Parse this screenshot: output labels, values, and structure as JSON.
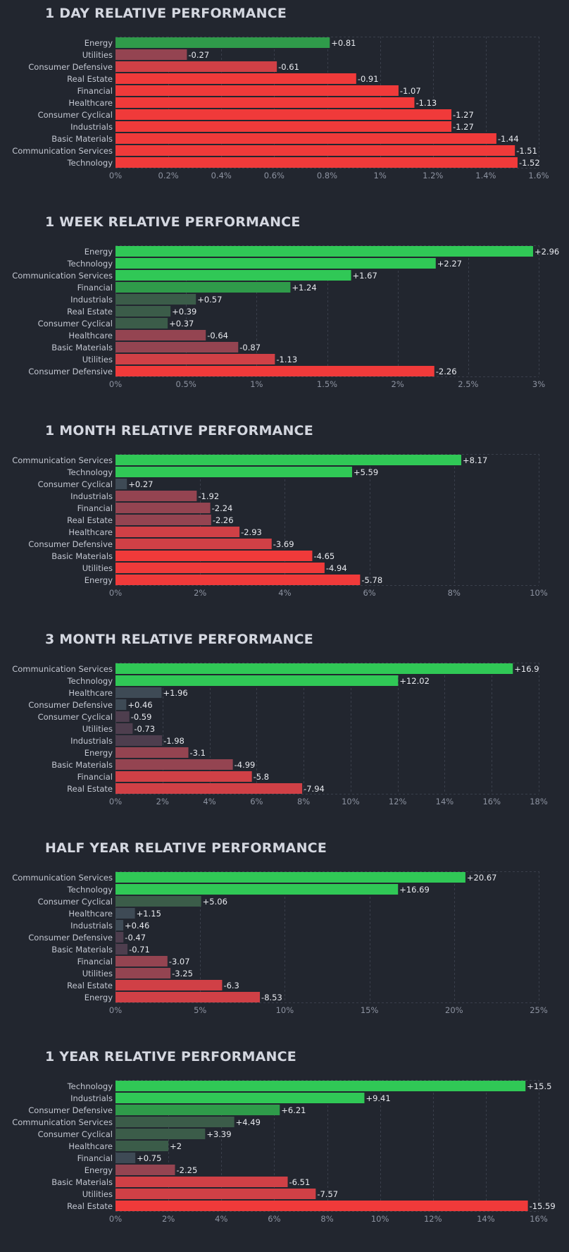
{
  "colors": {
    "background": "#22262f",
    "title": "#d4d7e0",
    "label": "#c3c7d1",
    "tick": "#8d93a1",
    "value": "#e8eaef",
    "grid": "#3a3f4b",
    "green_bright": "#30c856",
    "green_mid": "#2f9b4a",
    "green_dark": "#3b5c49",
    "green_faint": "#3e4a55",
    "red_bright": "#f03a3a",
    "red_mid": "#d04046",
    "red_dark": "#944451",
    "red_faint": "#4e3e4e"
  },
  "chart_data": [
    {
      "type": "bar",
      "orientation": "horizontal",
      "title": "1 DAY RELATIVE PERFORMANCE",
      "categories": [
        "Energy",
        "Utilities",
        "Consumer Defensive",
        "Real Estate",
        "Financial",
        "Healthcare",
        "Consumer Cyclical",
        "Industrials",
        "Basic Materials",
        "Communication Services",
        "Technology"
      ],
      "values": [
        0.81,
        -0.27,
        -0.61,
        -0.91,
        -1.07,
        -1.13,
        -1.27,
        -1.27,
        -1.44,
        -1.51,
        -1.52
      ],
      "value_labels": [
        "+0.81",
        "-0.27",
        "-0.61",
        "-0.91",
        "-1.07",
        "-1.13",
        "-1.27",
        "-1.27",
        "-1.44",
        "-1.51",
        "-1.52"
      ],
      "xlim": [
        0,
        1.6
      ],
      "x_ticks": [
        0,
        0.2,
        0.4,
        0.6,
        0.8,
        1,
        1.2,
        1.4,
        1.6
      ],
      "x_tick_labels": [
        "0%",
        "0.2%",
        "0.4%",
        "0.6%",
        "0.8%",
        "1%",
        "1.2%",
        "1.4%",
        "1.6%"
      ],
      "bar_length": "absolute value",
      "grid": true
    },
    {
      "type": "bar",
      "orientation": "horizontal",
      "title": "1 WEEK RELATIVE PERFORMANCE",
      "categories": [
        "Energy",
        "Technology",
        "Communication Services",
        "Financial",
        "Industrials",
        "Real Estate",
        "Consumer Cyclical",
        "Healthcare",
        "Basic Materials",
        "Utilities",
        "Consumer Defensive"
      ],
      "values": [
        2.96,
        2.27,
        1.67,
        1.24,
        0.57,
        0.39,
        0.37,
        -0.64,
        -0.87,
        -1.13,
        -2.26
      ],
      "value_labels": [
        "+2.96",
        "+2.27",
        "+1.67",
        "+1.24",
        "+0.57",
        "+0.39",
        "+0.37",
        "-0.64",
        "-0.87",
        "-1.13",
        "-2.26"
      ],
      "xlim": [
        0,
        3
      ],
      "x_ticks": [
        0,
        0.5,
        1,
        1.5,
        2,
        2.5,
        3
      ],
      "x_tick_labels": [
        "0%",
        "0.5%",
        "1%",
        "1.5%",
        "2%",
        "2.5%",
        "3%"
      ],
      "bar_length": "absolute value",
      "grid": true
    },
    {
      "type": "bar",
      "orientation": "horizontal",
      "title": "1 MONTH RELATIVE PERFORMANCE",
      "categories": [
        "Communication Services",
        "Technology",
        "Consumer Cyclical",
        "Industrials",
        "Financial",
        "Real Estate",
        "Healthcare",
        "Consumer Defensive",
        "Basic Materials",
        "Utilities",
        "Energy"
      ],
      "values": [
        8.17,
        5.59,
        0.27,
        -1.92,
        -2.24,
        -2.26,
        -2.93,
        -3.69,
        -4.65,
        -4.94,
        -5.78
      ],
      "value_labels": [
        "+8.17",
        "+5.59",
        "+0.27",
        "-1.92",
        "-2.24",
        "-2.26",
        "-2.93",
        "-3.69",
        "-4.65",
        "-4.94",
        "-5.78"
      ],
      "xlim": [
        0,
        10
      ],
      "x_ticks": [
        0,
        2,
        4,
        6,
        8,
        10
      ],
      "x_tick_labels": [
        "0%",
        "2%",
        "4%",
        "6%",
        "8%",
        "10%"
      ],
      "bar_length": "absolute value",
      "grid": true
    },
    {
      "type": "bar",
      "orientation": "horizontal",
      "title": "3 MONTH RELATIVE PERFORMANCE",
      "categories": [
        "Communication Services",
        "Technology",
        "Healthcare",
        "Consumer Defensive",
        "Consumer Cyclical",
        "Utilities",
        "Industrials",
        "Energy",
        "Basic Materials",
        "Financial",
        "Real Estate"
      ],
      "values": [
        16.9,
        12.02,
        1.96,
        0.46,
        -0.59,
        -0.73,
        -1.98,
        -3.1,
        -4.99,
        -5.8,
        -7.94
      ],
      "value_labels": [
        "+16.9",
        "+12.02",
        "+1.96",
        "+0.46",
        "-0.59",
        "-0.73",
        "-1.98",
        "-3.1",
        "-4.99",
        "-5.8",
        "-7.94"
      ],
      "xlim": [
        0,
        18
      ],
      "x_ticks": [
        0,
        2,
        4,
        6,
        8,
        10,
        12,
        14,
        16,
        18
      ],
      "x_tick_labels": [
        "0%",
        "2%",
        "4%",
        "6%",
        "8%",
        "10%",
        "12%",
        "14%",
        "16%",
        "18%"
      ],
      "bar_length": "absolute value",
      "grid": true
    },
    {
      "type": "bar",
      "orientation": "horizontal",
      "title": "HALF YEAR RELATIVE PERFORMANCE",
      "categories": [
        "Communication Services",
        "Technology",
        "Consumer Cyclical",
        "Healthcare",
        "Industrials",
        "Consumer Defensive",
        "Basic Materials",
        "Financial",
        "Utilities",
        "Real Estate",
        "Energy"
      ],
      "values": [
        20.67,
        16.69,
        5.06,
        1.15,
        0.46,
        -0.47,
        -0.71,
        -3.07,
        -3.25,
        -6.3,
        -8.53
      ],
      "value_labels": [
        "+20.67",
        "+16.69",
        "+5.06",
        "+1.15",
        "+0.46",
        "-0.47",
        "-0.71",
        "-3.07",
        "-3.25",
        "-6.3",
        "-8.53"
      ],
      "xlim": [
        0,
        25
      ],
      "x_ticks": [
        0,
        5,
        10,
        15,
        20,
        25
      ],
      "x_tick_labels": [
        "0%",
        "5%",
        "10%",
        "15%",
        "20%",
        "25%"
      ],
      "bar_length": "absolute value",
      "grid": true
    },
    {
      "type": "bar",
      "orientation": "horizontal",
      "title": "1 YEAR RELATIVE PERFORMANCE",
      "categories": [
        "Technology",
        "Industrials",
        "Consumer Defensive",
        "Communication Services",
        "Consumer Cyclical",
        "Healthcare",
        "Financial",
        "Energy",
        "Basic Materials",
        "Utilities",
        "Real Estate"
      ],
      "values": [
        15.5,
        9.41,
        6.21,
        4.49,
        3.39,
        2,
        0.75,
        -2.25,
        -6.51,
        -7.57,
        -15.59
      ],
      "value_labels": [
        "+15.5",
        "+9.41",
        "+6.21",
        "+4.49",
        "+3.39",
        "+2",
        "+0.75",
        "-2.25",
        "-6.51",
        "-7.57",
        "-15.59"
      ],
      "xlim": [
        0,
        16
      ],
      "x_ticks": [
        0,
        2,
        4,
        6,
        8,
        10,
        12,
        14,
        16
      ],
      "x_tick_labels": [
        "0%",
        "2%",
        "4%",
        "6%",
        "8%",
        "10%",
        "12%",
        "14%",
        "16%"
      ],
      "bar_length": "absolute value",
      "grid": true
    }
  ]
}
